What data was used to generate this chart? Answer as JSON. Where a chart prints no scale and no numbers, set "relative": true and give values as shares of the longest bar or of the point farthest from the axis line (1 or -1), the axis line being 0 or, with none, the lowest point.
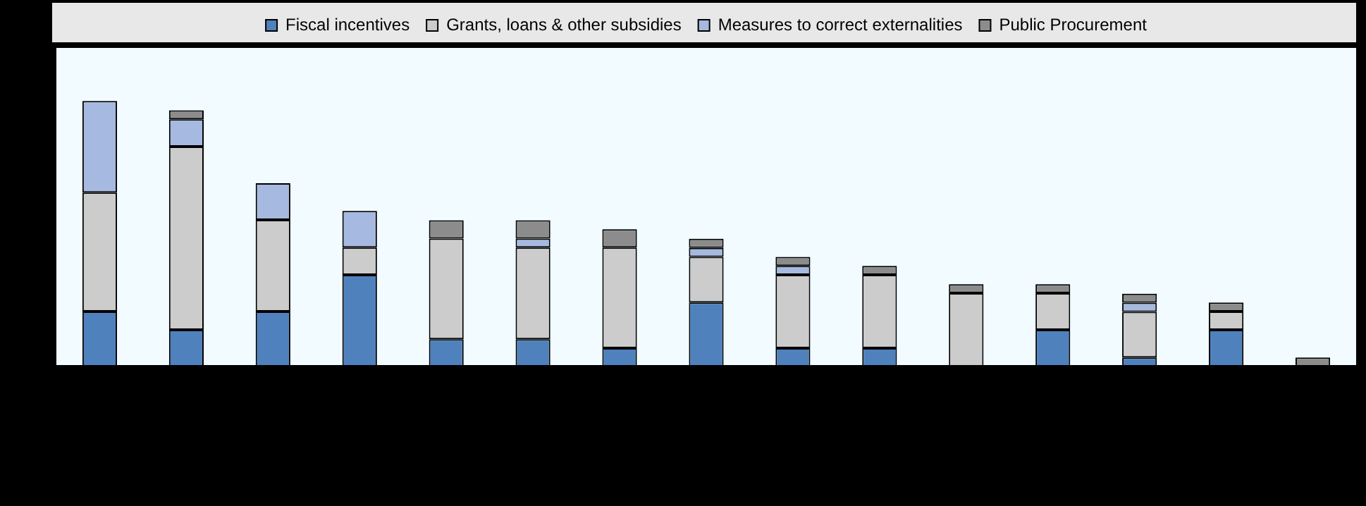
{
  "chart_data": {
    "type": "bar",
    "stacked": true,
    "relative": true,
    "legend": "top",
    "grid": false,
    "categories": [
      null,
      null,
      null,
      null,
      null,
      null,
      null,
      null,
      null,
      null,
      null,
      null,
      null,
      null,
      null
    ],
    "series": [
      {
        "name": "Fiscal incentives",
        "color": "#4f81bd",
        "values": [
          0.207,
          0.138,
          0.207,
          0.345,
          0.103,
          0.103,
          0.069,
          0.241,
          0.069,
          0.069,
          0,
          0.138,
          0.034,
          0.138,
          0
        ]
      },
      {
        "name": "Grants, loans & other subsidies",
        "color": "#cccccc",
        "values": [
          0.448,
          0.69,
          0.345,
          0.103,
          0.379,
          0.345,
          0.379,
          0.172,
          0.276,
          0.276,
          0.276,
          0.138,
          0.172,
          0.069,
          0
        ]
      },
      {
        "name": "Measures to correct externalities",
        "color": "#a6b9e0",
        "values": [
          0.345,
          0.103,
          0.138,
          0.138,
          0,
          0.034,
          0,
          0.034,
          0.034,
          0,
          0,
          0,
          0.034,
          0,
          0
        ]
      },
      {
        "name": "Public Procurement",
        "color": "#8c8c8c",
        "values": [
          0,
          0.034,
          0,
          0,
          0.069,
          0.069,
          0.069,
          0.034,
          0.034,
          0.034,
          0.034,
          0.034,
          0.034,
          0.034,
          0.034
        ]
      }
    ]
  }
}
